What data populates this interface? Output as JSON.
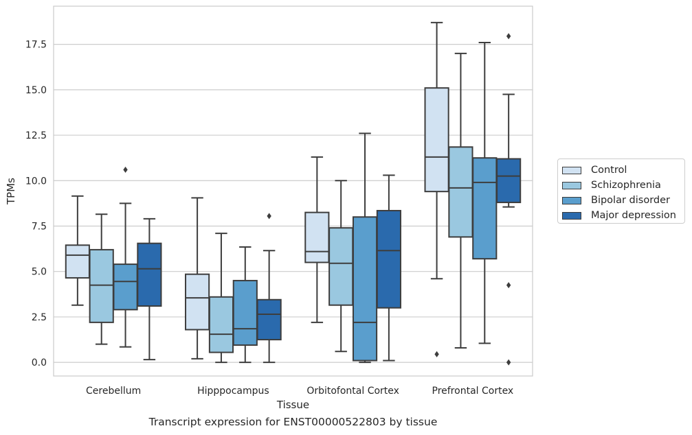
{
  "chart_data": {
    "type": "box",
    "title": "Transcript expression for ENST00000522803 by tissue",
    "xlabel": "Tissue",
    "ylabel": "TPMs",
    "ylim": [
      -0.75,
      19.6
    ],
    "yticks": [
      "0.0",
      "2.5",
      "5.0",
      "7.5",
      "10.0",
      "12.5",
      "15.0",
      "17.5"
    ],
    "ytick_values": [
      0,
      2.5,
      5,
      7.5,
      10,
      12.5,
      15,
      17.5
    ],
    "categories": [
      "Cerebellum",
      "Hipppocampus",
      "Orbitofontal Cortex",
      "Prefrontal Cortex"
    ],
    "grid": "horizontal",
    "legend_position": "right",
    "series": [
      {
        "name": "Control",
        "color": "#d1e2f2",
        "boxes": [
          {
            "whislo": 3.15,
            "q1": 4.65,
            "med": 5.9,
            "q3": 6.45,
            "whishi": 9.15,
            "fliers": []
          },
          {
            "whislo": 0.2,
            "q1": 1.8,
            "med": 3.55,
            "q3": 4.85,
            "whishi": 9.05,
            "fliers": []
          },
          {
            "whislo": 2.2,
            "q1": 5.5,
            "med": 6.1,
            "q3": 8.25,
            "whishi": 11.3,
            "fliers": []
          },
          {
            "whislo": 4.6,
            "q1": 9.4,
            "med": 11.3,
            "q3": 15.1,
            "whishi": 18.7,
            "fliers": [
              0.45
            ]
          }
        ]
      },
      {
        "name": "Schizophrenia",
        "color": "#9ac8e0",
        "boxes": [
          {
            "whislo": 1.0,
            "q1": 2.2,
            "med": 4.25,
            "q3": 6.2,
            "whishi": 8.15,
            "fliers": []
          },
          {
            "whislo": 0.0,
            "q1": 0.55,
            "med": 1.55,
            "q3": 3.6,
            "whishi": 7.1,
            "fliers": []
          },
          {
            "whislo": 0.6,
            "q1": 3.15,
            "med": 5.45,
            "q3": 7.4,
            "whishi": 10.0,
            "fliers": []
          },
          {
            "whislo": 0.8,
            "q1": 6.9,
            "med": 9.6,
            "q3": 11.85,
            "whishi": 17.0,
            "fliers": []
          }
        ]
      },
      {
        "name": "Bipolar disorder",
        "color": "#5a9ecd",
        "boxes": [
          {
            "whislo": 0.85,
            "q1": 2.9,
            "med": 4.45,
            "q3": 5.4,
            "whishi": 8.75,
            "fliers": [
              10.6
            ]
          },
          {
            "whislo": 0.0,
            "q1": 0.95,
            "med": 1.85,
            "q3": 4.5,
            "whishi": 6.35,
            "fliers": []
          },
          {
            "whislo": 0.0,
            "q1": 0.1,
            "med": 2.2,
            "q3": 8.0,
            "whishi": 12.6,
            "fliers": []
          },
          {
            "whislo": 1.05,
            "q1": 5.7,
            "med": 9.9,
            "q3": 11.25,
            "whishi": 17.6,
            "fliers": []
          }
        ]
      },
      {
        "name": "Major depression",
        "color": "#2a6aad",
        "boxes": [
          {
            "whislo": 0.15,
            "q1": 3.1,
            "med": 5.15,
            "q3": 6.55,
            "whishi": 7.9,
            "fliers": []
          },
          {
            "whislo": 0.0,
            "q1": 1.25,
            "med": 2.65,
            "q3": 3.45,
            "whishi": 6.15,
            "fliers": [
              8.05
            ]
          },
          {
            "whislo": 0.1,
            "q1": 3.0,
            "med": 6.15,
            "q3": 8.35,
            "whishi": 10.3,
            "fliers": []
          },
          {
            "whislo": 8.55,
            "q1": 8.8,
            "med": 10.25,
            "q3": 11.2,
            "whishi": 14.75,
            "fliers": [
              17.95,
              4.25,
              0.0
            ]
          }
        ]
      }
    ]
  }
}
